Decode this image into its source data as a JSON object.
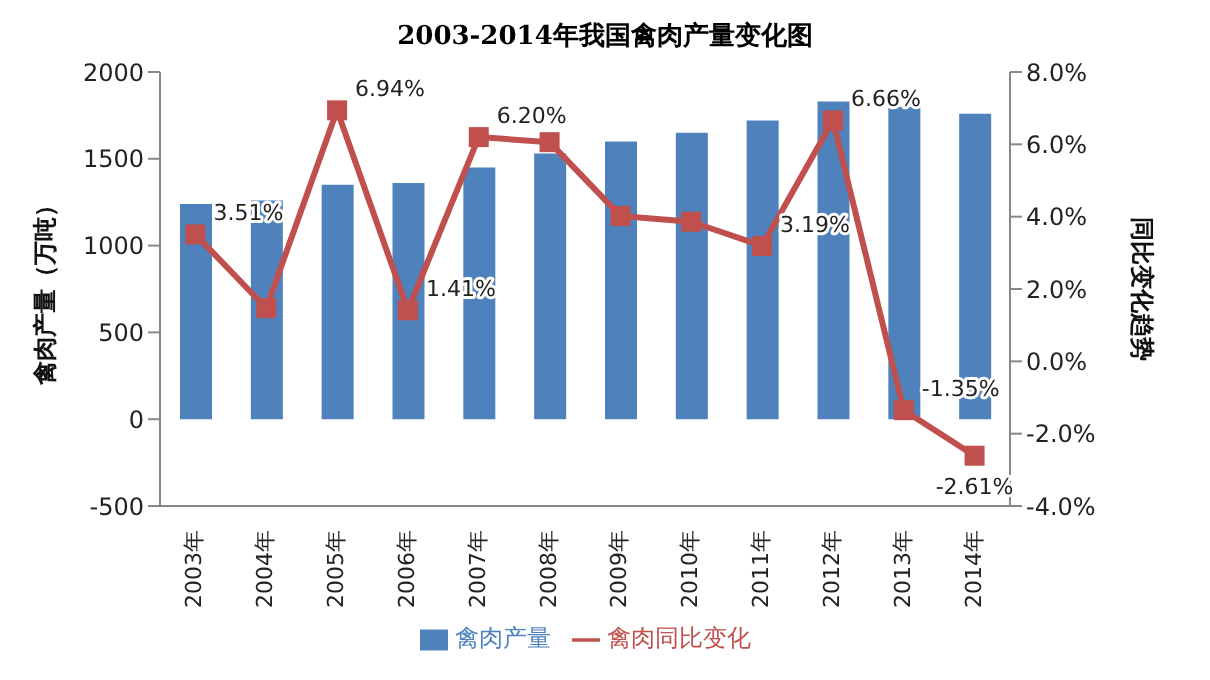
{
  "chart_data": {
    "type": "bar",
    "title": "2003-2014年我国禽肉产量变化图",
    "ylabel": "禽肉产量（万吨）",
    "y2label": "同比变化趋势",
    "categories": [
      "2003年",
      "2004年",
      "2005年",
      "2006年",
      "2007年",
      "2008年",
      "2009年",
      "2010年",
      "2011年",
      "2012年",
      "2013年",
      "2014年"
    ],
    "series": [
      {
        "name": "禽肉产量",
        "color": "#4f81bd",
        "values": [
          1240,
          1260,
          1350,
          1360,
          1450,
          1530,
          1600,
          1650,
          1720,
          1830,
          1800,
          1760
        ]
      },
      {
        "name": "禽肉同比变化",
        "type": "line",
        "axis": "y2",
        "color": "#c0504d",
        "marker": "square",
        "values": [
          3.51,
          1.47,
          6.94,
          1.41,
          6.2,
          6.06,
          4.02,
          3.86,
          3.19,
          6.66,
          -1.35,
          -2.61
        ],
        "value_labels": [
          "3.51%",
          null,
          "6.94%",
          "1.41%",
          "6.20%",
          null,
          null,
          null,
          "3.19%",
          "6.66%",
          "-1.35%",
          "-2.61%"
        ]
      }
    ],
    "ylim": [
      -500,
      2000
    ],
    "yticks": [
      -500,
      0,
      500,
      1000,
      1500,
      2000
    ],
    "y2lim": [
      -4,
      8
    ],
    "y2ticks": [
      {
        "value": -4,
        "label": "-4.0%"
      },
      {
        "value": -2,
        "label": "-2.0%"
      },
      {
        "value": 0,
        "label": "0.0%"
      },
      {
        "value": 2,
        "label": "2.0%"
      },
      {
        "value": 4,
        "label": "4.0%"
      },
      {
        "value": 6,
        "label": "6.0%"
      },
      {
        "value": 8,
        "label": "8.0%"
      }
    ],
    "legend": "bottom",
    "grid": false
  }
}
